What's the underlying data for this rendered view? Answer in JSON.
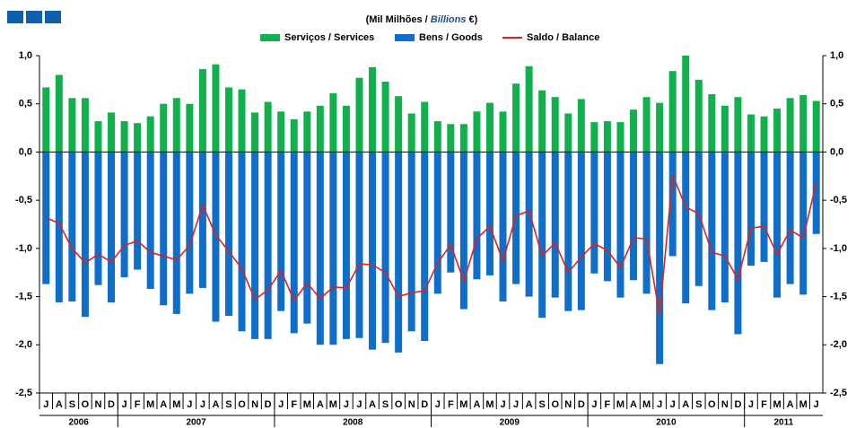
{
  "chart_data": {
    "type": "bar_line",
    "title_parts": [
      "(Mil Milhões / ",
      "Billions",
      " €)"
    ],
    "categories": [
      "J",
      "A",
      "S",
      "O",
      "N",
      "D",
      "J",
      "F",
      "M",
      "A",
      "M",
      "J",
      "J",
      "A",
      "S",
      "O",
      "N",
      "D",
      "J",
      "F",
      "M",
      "A",
      "M",
      "J",
      "J",
      "A",
      "S",
      "O",
      "N",
      "D",
      "J",
      "F",
      "M",
      "A",
      "M",
      "J",
      "J",
      "A",
      "S",
      "O",
      "N",
      "D",
      "J",
      "F",
      "M",
      "A",
      "M",
      "J",
      "J",
      "A",
      "S",
      "O",
      "N",
      "D",
      "J",
      "F",
      "M",
      "A",
      "M",
      "J"
    ],
    "years": [
      "2006",
      "2007",
      "2008",
      "2009",
      "2010",
      "2011"
    ],
    "series": [
      {
        "name": "Serviços / Services",
        "kind": "bar",
        "color": "#12b04c",
        "values": [
          0.67,
          0.8,
          0.56,
          0.56,
          0.32,
          0.41,
          0.32,
          0.3,
          0.37,
          0.5,
          0.56,
          0.5,
          0.86,
          0.91,
          0.67,
          0.65,
          0.41,
          0.52,
          0.42,
          0.34,
          0.42,
          0.48,
          0.61,
          0.48,
          0.77,
          0.88,
          0.73,
          0.58,
          0.4,
          0.52,
          0.32,
          0.29,
          0.29,
          0.42,
          0.51,
          0.42,
          0.71,
          0.89,
          0.64,
          0.57,
          0.4,
          0.55,
          0.31,
          0.32,
          0.31,
          0.44,
          0.57,
          0.51,
          0.84,
          1.0,
          0.75,
          0.6,
          0.48,
          0.57,
          0.39,
          0.37,
          0.45,
          0.56,
          0.59,
          0.53
        ]
      },
      {
        "name": "Bens / Goods",
        "kind": "bar",
        "color": "#0e6ec8",
        "values": [
          -1.37,
          -1.56,
          -1.55,
          -1.71,
          -1.38,
          -1.56,
          -1.3,
          -1.22,
          -1.42,
          -1.59,
          -1.68,
          -1.47,
          -1.41,
          -1.76,
          -1.7,
          -1.86,
          -1.94,
          -1.94,
          -1.65,
          -1.88,
          -1.78,
          -2.0,
          -2.0,
          -1.94,
          -1.93,
          -2.05,
          -1.98,
          -2.08,
          -1.86,
          -1.96,
          -1.47,
          -1.25,
          -1.63,
          -1.32,
          -1.28,
          -1.55,
          -1.37,
          -1.5,
          -1.72,
          -1.51,
          -1.65,
          -1.64,
          -1.26,
          -1.34,
          -1.51,
          -1.33,
          -1.47,
          -2.2,
          -1.08,
          -1.57,
          -1.39,
          -1.64,
          -1.56,
          -1.89,
          -1.18,
          -1.14,
          -1.51,
          -1.37,
          -1.48,
          -0.85
        ]
      },
      {
        "name": "Saldo  / Balance",
        "kind": "line",
        "color": "#e3201b",
        "values": [
          -0.68,
          -0.74,
          -1.0,
          -1.15,
          -1.06,
          -1.14,
          -0.97,
          -0.92,
          -1.04,
          -1.08,
          -1.12,
          -0.97,
          -0.55,
          -0.86,
          -1.03,
          -1.21,
          -1.53,
          -1.43,
          -1.23,
          -1.54,
          -1.36,
          -1.52,
          -1.4,
          -1.41,
          -1.16,
          -1.17,
          -1.25,
          -1.5,
          -1.46,
          -1.44,
          -1.15,
          -0.96,
          -1.34,
          -0.9,
          -0.77,
          -1.13,
          -0.66,
          -0.61,
          -1.08,
          -0.94,
          -1.25,
          -1.09,
          -0.95,
          -1.02,
          -1.2,
          -0.89,
          -0.9,
          -1.69,
          -0.24,
          -0.57,
          -0.64,
          -1.04,
          -1.08,
          -1.32,
          -0.79,
          -0.77,
          -1.06,
          -0.81,
          -0.89,
          -0.32
        ]
      }
    ],
    "ylim": [
      -2.5,
      1.0
    ],
    "yticks": [
      {
        "value": 1.0,
        "label": "1,0"
      },
      {
        "value": 0.5,
        "label": "0,5"
      },
      {
        "value": 0,
        "label": "0,0"
      },
      {
        "value": -0.5,
        "label": "-0,5"
      },
      {
        "value": -1.0,
        "label": "-1,0"
      },
      {
        "value": -1.5,
        "label": "-1,5"
      },
      {
        "value": -2.0,
        "label": "-2,0"
      },
      {
        "value": -2.5,
        "label": "-2,5"
      }
    ]
  }
}
